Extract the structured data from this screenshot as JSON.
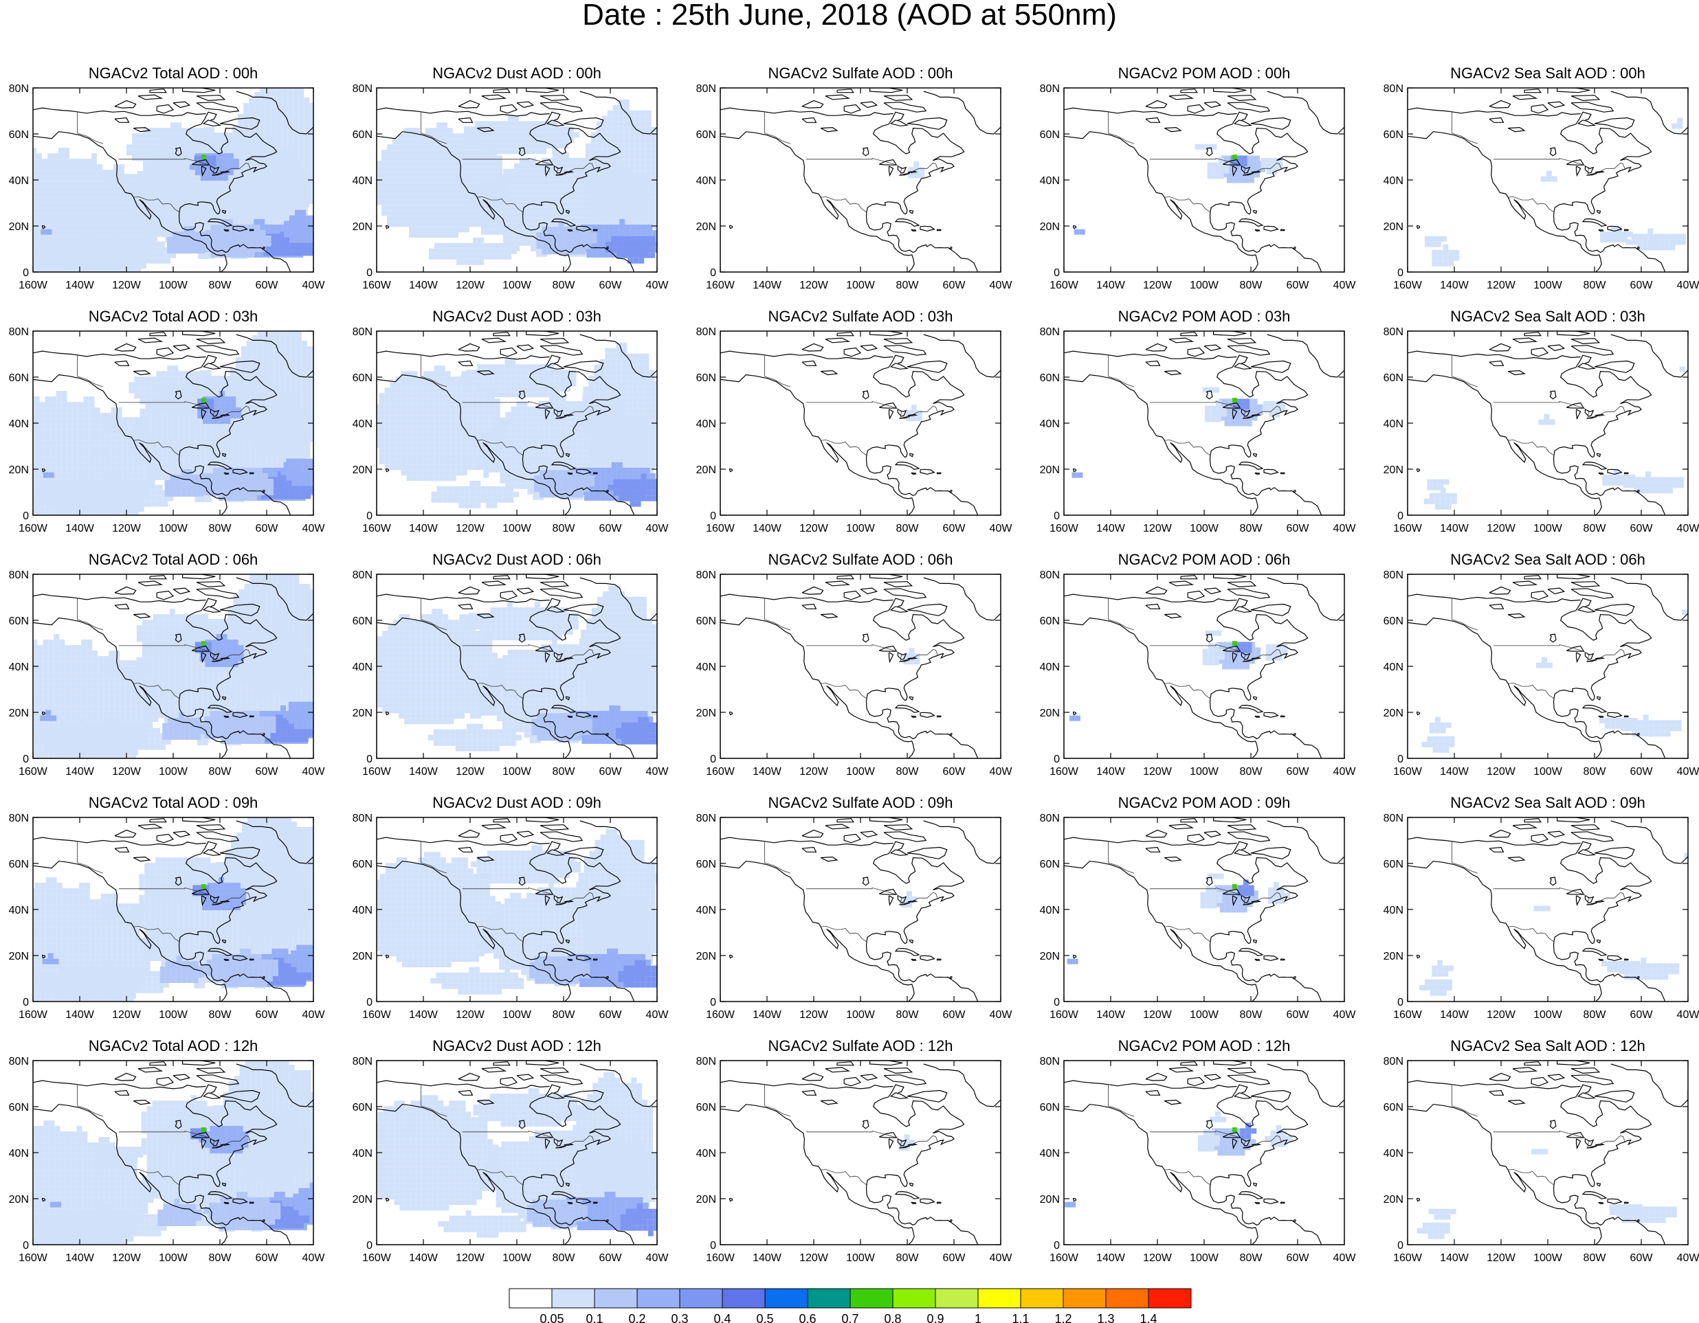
{
  "figure": {
    "title": "Date : 25th June, 2018 (AOD at 550nm)"
  },
  "axes": {
    "y_ticks": [
      "80N",
      "60N",
      "40N",
      "20N",
      "0"
    ],
    "x_ticks": [
      "160W",
      "140W",
      "120W",
      "100W",
      "80W",
      "60W",
      "40W"
    ],
    "lon_range": [
      -160,
      -40
    ],
    "lat_range": [
      0,
      80
    ]
  },
  "rows": [
    {
      "hour": "00h",
      "titles": [
        "NGACv2 Total AOD : 00h",
        "NGACv2 Dust AOD : 00h",
        "NGACv2 Sulfate AOD : 00h",
        "NGACv2 POM AOD : 00h",
        "NGACv2 Sea Salt AOD : 00h"
      ]
    },
    {
      "hour": "03h",
      "titles": [
        "NGACv2 Total AOD : 03h",
        "NGACv2 Dust AOD : 03h",
        "NGACv2 Sulfate AOD : 03h",
        "NGACv2 POM AOD : 03h",
        "NGACv2 Sea Salt AOD : 03h"
      ]
    },
    {
      "hour": "06h",
      "titles": [
        "NGACv2 Total AOD : 06h",
        "NGACv2 Dust AOD : 06h",
        "NGACv2 Sulfate AOD : 06h",
        "NGACv2 POM AOD : 06h",
        "NGACv2 Sea Salt AOD : 06h"
      ]
    },
    {
      "hour": "09h",
      "titles": [
        "NGACv2 Total AOD : 09h",
        "NGACv2 Dust AOD : 09h",
        "NGACv2 Sulfate AOD : 09h",
        "NGACv2 POM AOD : 09h",
        "NGACv2 Sea Salt  AOD : 09h"
      ]
    },
    {
      "hour": "12h",
      "titles": [
        "NGACv2 Total AOD  : 12h",
        "NGACv2 Dust AOD : 12h",
        "NGACv2 Sulfate AOD : 12h",
        "NGACv2 POM  AOD : 12h",
        "NGACv2 Sea Salt  AOD : 12h"
      ]
    }
  ],
  "columns": [
    "Total",
    "Dust",
    "Sulfate",
    "POM",
    "Sea Salt"
  ],
  "colorbar": {
    "labels": [
      "0.05",
      "0.1",
      "0.2",
      "0.3",
      "0.4",
      "0.5",
      "0.6",
      "0.7",
      "0.8",
      "0.9",
      "1",
      "1.1",
      "1.2",
      "1.3",
      "1.4"
    ],
    "colors": [
      "#ffffff",
      "#d2e1fa",
      "#b4c8f8",
      "#96aff6",
      "#7d96f2",
      "#5f73ea",
      "#0a6ef0",
      "#00968c",
      "#3ccd0a",
      "#8cf000",
      "#c3f046",
      "#ffff00",
      "#ffc800",
      "#ff9600",
      "#ff6e00",
      "#ff1e00"
    ]
  },
  "map_colors": {
    "coast": "#000000",
    "level_1": "#d2e1fa",
    "level_2": "#b4c8f8",
    "level_3": "#96aff6",
    "level_4": "#7d96f2",
    "level_5": "#5f73ea",
    "level_6": "#0a6ef0",
    "green": "#3ccd0a"
  }
}
